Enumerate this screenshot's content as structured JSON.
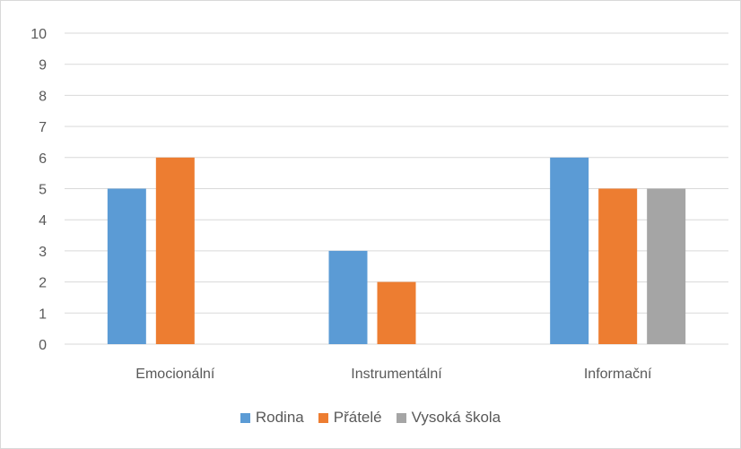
{
  "chart_data": {
    "type": "bar",
    "categories": [
      "Emocionální",
      "Instrumentální",
      "Informační"
    ],
    "series": [
      {
        "name": "Rodina",
        "color": "#5b9bd5",
        "values": [
          5,
          3,
          6
        ]
      },
      {
        "name": "Přátelé",
        "color": "#ed7d31",
        "values": [
          6,
          2,
          5
        ]
      },
      {
        "name": "Vysoká škola",
        "color": "#a5a5a5",
        "values": [
          null,
          null,
          5
        ]
      }
    ],
    "yticks": [
      "0",
      "1",
      "2",
      "3",
      "4",
      "5",
      "6",
      "7",
      "8",
      "9",
      "10"
    ],
    "ylim": [
      0,
      10
    ],
    "grid": true,
    "legend_position": "bottom"
  }
}
